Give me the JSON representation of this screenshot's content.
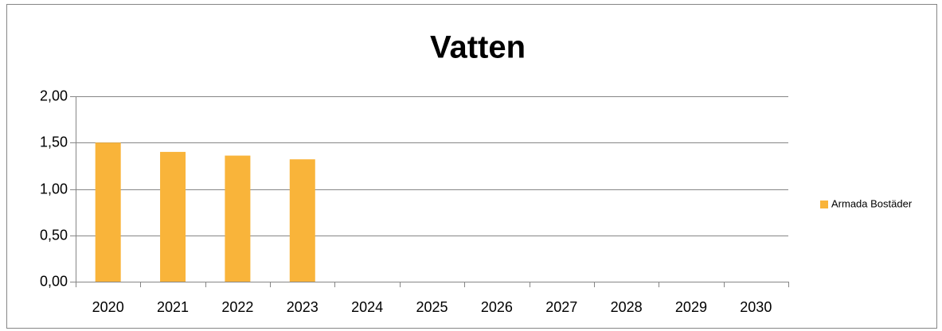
{
  "chart_data": {
    "type": "bar",
    "title": "Vatten",
    "categories": [
      "2020",
      "2021",
      "2022",
      "2023",
      "2024",
      "2025",
      "2026",
      "2027",
      "2028",
      "2029",
      "2030"
    ],
    "series": [
      {
        "name": "Armada Bostäder",
        "color": "#f9b43a",
        "values": [
          1.5,
          1.4,
          1.36,
          1.32,
          null,
          null,
          null,
          null,
          null,
          null,
          null
        ]
      }
    ],
    "ylim": [
      0,
      2
    ],
    "yticks": [
      {
        "value": 0,
        "label": "0,00"
      },
      {
        "value": 0.5,
        "label": "0,50"
      },
      {
        "value": 1,
        "label": "1,00"
      },
      {
        "value": 1.5,
        "label": "1,50"
      },
      {
        "value": 2,
        "label": "2,00"
      }
    ],
    "grid": true,
    "legend": "right"
  }
}
